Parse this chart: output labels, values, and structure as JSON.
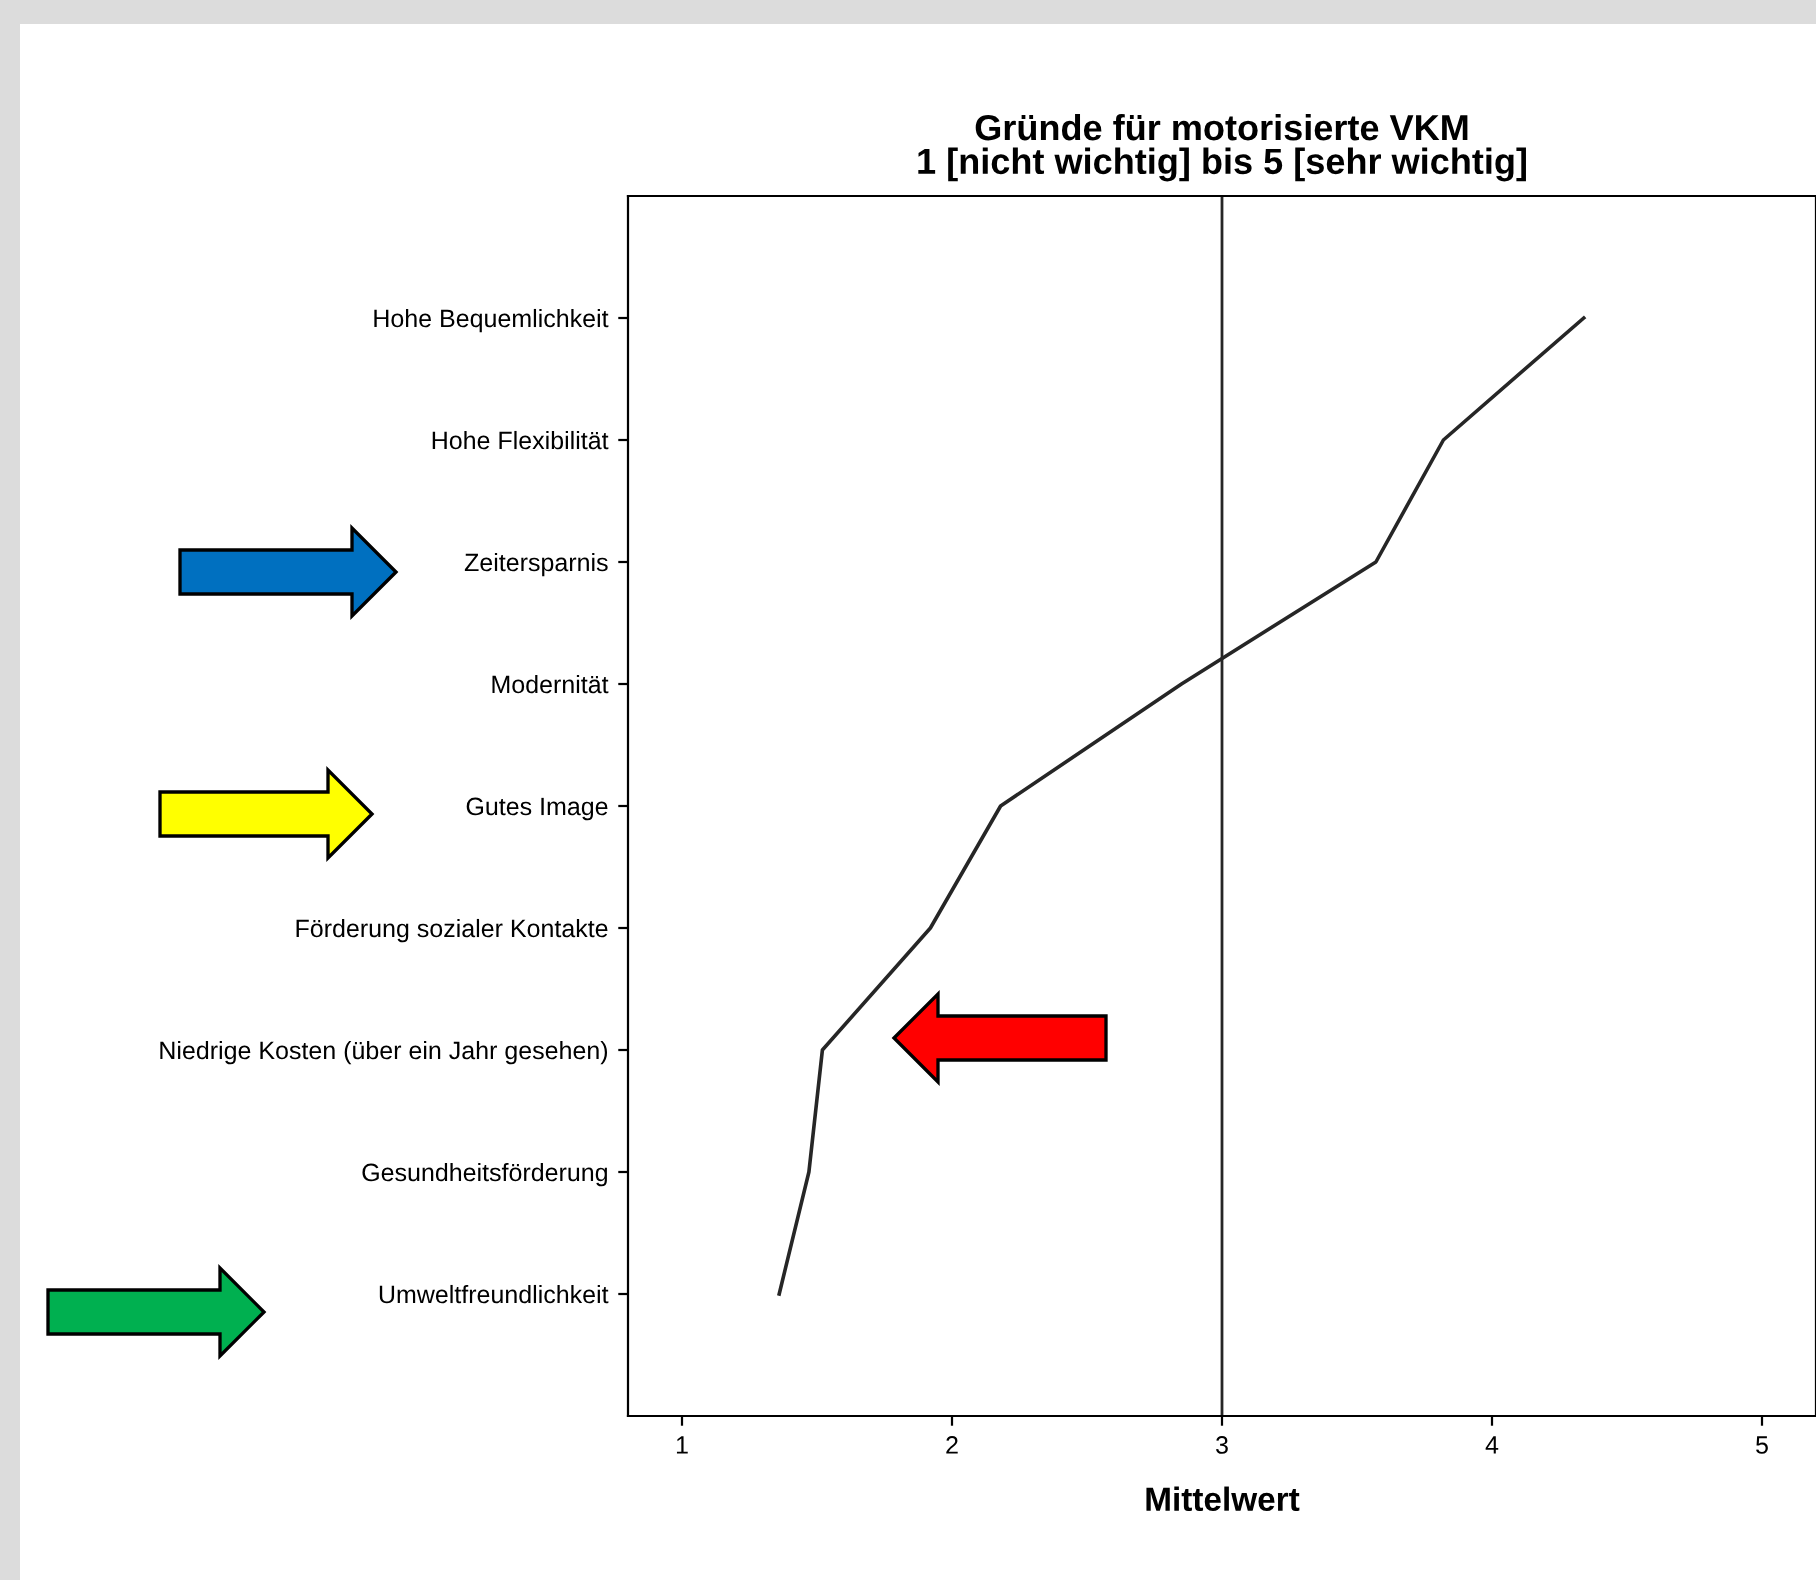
{
  "chart_data": {
    "type": "line",
    "title": "Gründe für motorisierte VKM\n1 [nicht wichtig] bis 5 [sehr wichtig]",
    "xlabel": "Mittelwert",
    "orientation": "horizontal",
    "categories": [
      "Hohe Bequemlichkeit",
      "Hohe Flexibilität",
      "Zeitersparnis",
      "Modernität",
      "Gutes Image",
      "Förderung sozialer Kontakte",
      "Niedrige Kosten (über ein Jahr gesehen)",
      "Gesundheitsförderung",
      "Umweltfreundlichkeit"
    ],
    "series": [
      {
        "color": "#262626",
        "values": [
          4.34,
          3.82,
          3.57,
          2.85,
          2.18,
          1.92,
          1.52,
          1.47,
          1.36
        ]
      }
    ],
    "xlim": [
      0.8,
      5.2
    ],
    "xticks": [
      1,
      2,
      3,
      4,
      5
    ],
    "ref_lines": [
      {
        "axis": "x",
        "value": 3,
        "color": "#262626"
      }
    ],
    "grid": false,
    "legend": false,
    "marker": "none",
    "line_style": "solid"
  }
}
